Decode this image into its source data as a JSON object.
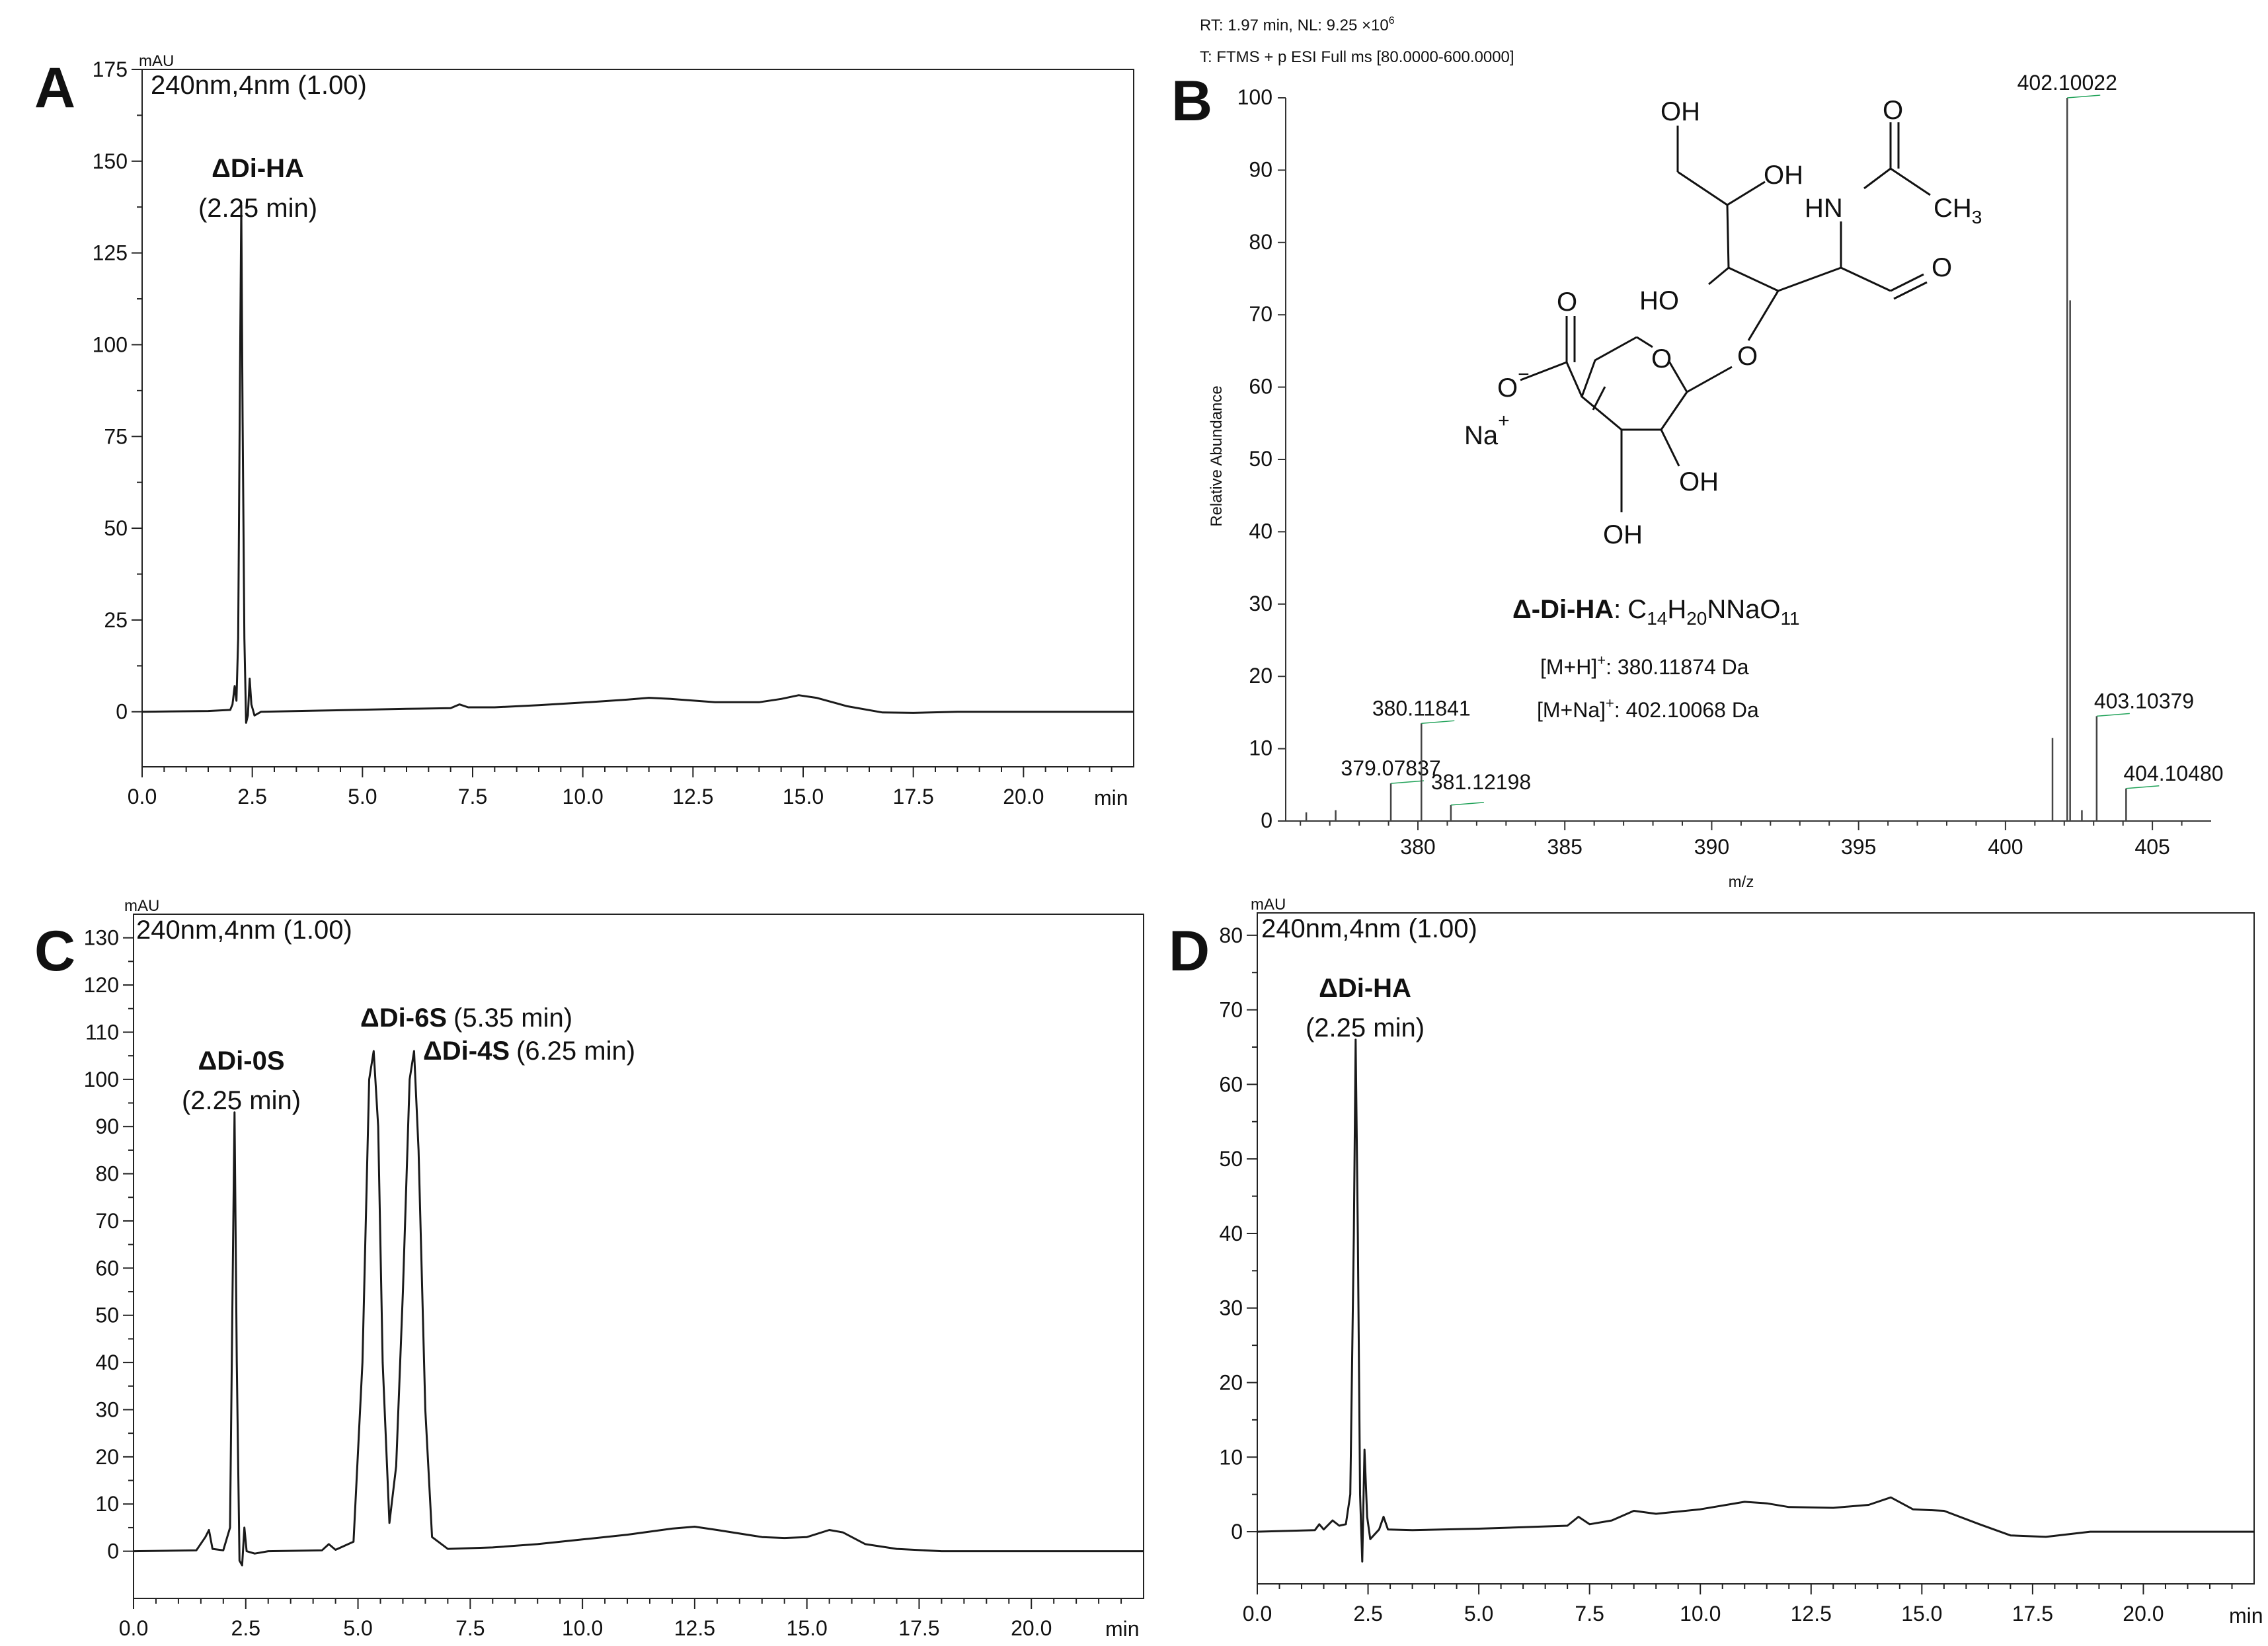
{
  "colors": {
    "trace": "#1a1a1a",
    "axis": "#222222",
    "ms_bar": "#444444",
    "ms_centroid": "#22a35a"
  },
  "chart_data": [
    {
      "id": "A",
      "type": "line",
      "panel_letter": "A",
      "ylabel": "mAU",
      "xlabel": "min",
      "header": "240nm,4nm (1.00)",
      "xlim": [
        0,
        22.5
      ],
      "ylim": [
        -15,
        175
      ],
      "xticks": [
        0,
        2.5,
        5,
        7.5,
        10,
        12.5,
        15,
        17.5,
        20
      ],
      "xtick_labels": [
        "0.0",
        "2.5",
        "5.0",
        "7.5",
        "10.0",
        "12.5",
        "15.0",
        "17.5",
        "20.0"
      ],
      "yticks": [
        0,
        25,
        50,
        75,
        100,
        125,
        150,
        175
      ],
      "ytick_labels": [
        "0",
        "25",
        "50",
        "75",
        "100",
        "125",
        "150",
        "175"
      ],
      "annotations": [
        {
          "name": "ΔDi-HA",
          "time": "(2.25 min)",
          "peak_x": 2.25,
          "peak_y": 138
        }
      ],
      "points": [
        [
          0,
          0
        ],
        [
          1.5,
          0.2
        ],
        [
          2.0,
          0.5
        ],
        [
          2.05,
          2
        ],
        [
          2.1,
          7
        ],
        [
          2.14,
          3
        ],
        [
          2.18,
          20
        ],
        [
          2.22,
          90
        ],
        [
          2.25,
          138
        ],
        [
          2.28,
          80
        ],
        [
          2.32,
          20
        ],
        [
          2.36,
          -3
        ],
        [
          2.4,
          -1
        ],
        [
          2.44,
          9
        ],
        [
          2.48,
          2
        ],
        [
          2.55,
          -1
        ],
        [
          2.7,
          0
        ],
        [
          4.0,
          0.3
        ],
        [
          6.0,
          0.8
        ],
        [
          7.0,
          1.0
        ],
        [
          7.2,
          2.0
        ],
        [
          7.4,
          1.2
        ],
        [
          8.0,
          1.2
        ],
        [
          9.0,
          1.8
        ],
        [
          10.0,
          2.5
        ],
        [
          11.0,
          3.3
        ],
        [
          11.5,
          3.8
        ],
        [
          12.0,
          3.5
        ],
        [
          13.0,
          2.6
        ],
        [
          14.0,
          2.6
        ],
        [
          14.5,
          3.5
        ],
        [
          14.9,
          4.5
        ],
        [
          15.3,
          3.8
        ],
        [
          16.0,
          1.5
        ],
        [
          16.8,
          -0.2
        ],
        [
          17.5,
          -0.3
        ],
        [
          18.5,
          0
        ],
        [
          20.0,
          0
        ],
        [
          22.5,
          0
        ]
      ]
    },
    {
      "id": "B",
      "type": "bar",
      "panel_letter": "B",
      "header_rt": "RT: 1.97 min, NL: 9.25 ×10",
      "header_rt_sup": "6",
      "header_scan": "T: FTMS + p ESI Full ms [80.0000-600.0000]",
      "xlabel": "m/z",
      "ylabel": "Relative Abundance",
      "xlim": [
        375.5,
        407
      ],
      "ylim": [
        0,
        100
      ],
      "xticks": [
        380,
        385,
        390,
        395,
        400,
        405
      ],
      "xtick_labels": [
        "380",
        "385",
        "390",
        "395",
        "400",
        "405"
      ],
      "yticks": [
        0,
        10,
        20,
        30,
        40,
        50,
        60,
        70,
        80,
        90,
        100
      ],
      "ytick_labels": [
        "0",
        "10",
        "20",
        "30",
        "40",
        "50",
        "60",
        "70",
        "80",
        "90",
        "100"
      ],
      "peaks": [
        {
          "mz": 376.2,
          "value": 1.2,
          "label": ""
        },
        {
          "mz": 377.2,
          "value": 1.5,
          "label": ""
        },
        {
          "mz": 379.07837,
          "value": 5.2,
          "label": "379.07837"
        },
        {
          "mz": 380.11841,
          "value": 13.5,
          "label": "380.11841"
        },
        {
          "mz": 381.12198,
          "value": 2.2,
          "label": "381.12198"
        },
        {
          "mz": 401.6,
          "value": 11.5,
          "label": ""
        },
        {
          "mz": 402.10022,
          "value": 100,
          "label": "402.10022"
        },
        {
          "mz": 402.2,
          "value": 72,
          "label": ""
        },
        {
          "mz": 402.6,
          "value": 1.5,
          "label": ""
        },
        {
          "mz": 403.10379,
          "value": 14.5,
          "label": "403.10379"
        },
        {
          "mz": 404.1048,
          "value": 4.5,
          "label": "404.10480"
        }
      ],
      "structure": {
        "labels": {
          "OH": "OH",
          "HO": "HO",
          "HN": "HN",
          "CH": "CH",
          "CH_sub": "3",
          "O": "O",
          "O_minus": "−",
          "Na": "Na",
          "Na_plus": "+"
        },
        "formula_name": "Δ-Di-HA",
        "formula_colon": ":",
        "formula_parts": [
          "C",
          "14",
          "H",
          "20",
          "NNaO",
          "11"
        ],
        "ion1_label": "[M+H]",
        "ion1_charge": "+",
        "ion1_value": ":  380.11874 Da",
        "ion2_label": "[M+Na]",
        "ion2_charge": "+",
        "ion2_value": ":  402.10068 Da"
      }
    },
    {
      "id": "C",
      "type": "line",
      "panel_letter": "C",
      "ylabel": "mAU",
      "xlabel": "min",
      "header": "240nm,4nm (1.00)",
      "xlim": [
        0,
        22.5
      ],
      "ylim": [
        -10,
        135
      ],
      "xticks": [
        0,
        2.5,
        5,
        7.5,
        10,
        12.5,
        15,
        17.5,
        20
      ],
      "xtick_labels": [
        "0.0",
        "2.5",
        "5.0",
        "7.5",
        "10.0",
        "12.5",
        "15.0",
        "17.5",
        "20.0"
      ],
      "yticks": [
        0,
        10,
        20,
        30,
        40,
        50,
        60,
        70,
        80,
        90,
        100,
        110,
        120,
        130
      ],
      "ytick_labels": [
        "0",
        "10",
        "20",
        "30",
        "40",
        "50",
        "60",
        "70",
        "80",
        "90",
        "100",
        "110",
        "120",
        "130"
      ],
      "annotations": [
        {
          "name": "ΔDi-0S",
          "time": "(2.25 min)",
          "peak_x": 2.25,
          "peak_y": 93
        },
        {
          "name": "ΔDi-6S",
          "time": "(5.35 min)",
          "peak_x": 5.35,
          "peak_y": 106
        },
        {
          "name": "ΔDi-4S",
          "time": "(6.25 min)",
          "peak_x": 6.25,
          "peak_y": 106
        }
      ],
      "points": [
        [
          0,
          0
        ],
        [
          1.4,
          0.2
        ],
        [
          1.6,
          3
        ],
        [
          1.68,
          4.5
        ],
        [
          1.76,
          0.5
        ],
        [
          2.0,
          0.2
        ],
        [
          2.15,
          5
        ],
        [
          2.2,
          50
        ],
        [
          2.25,
          93
        ],
        [
          2.3,
          40
        ],
        [
          2.36,
          -2
        ],
        [
          2.42,
          -3
        ],
        [
          2.47,
          5
        ],
        [
          2.52,
          0
        ],
        [
          2.7,
          -0.5
        ],
        [
          3.0,
          0
        ],
        [
          4.2,
          0.2
        ],
        [
          4.35,
          1.5
        ],
        [
          4.5,
          0.3
        ],
        [
          4.9,
          2
        ],
        [
          5.1,
          40
        ],
        [
          5.25,
          100
        ],
        [
          5.35,
          106
        ],
        [
          5.45,
          90
        ],
        [
          5.55,
          40
        ],
        [
          5.7,
          6
        ],
        [
          5.85,
          18
        ],
        [
          6.0,
          55
        ],
        [
          6.15,
          100
        ],
        [
          6.25,
          106
        ],
        [
          6.35,
          85
        ],
        [
          6.5,
          30
        ],
        [
          6.65,
          3
        ],
        [
          7.0,
          0.5
        ],
        [
          8.0,
          0.8
        ],
        [
          9.0,
          1.5
        ],
        [
          10.0,
          2.5
        ],
        [
          11.0,
          3.5
        ],
        [
          12.0,
          4.8
        ],
        [
          12.5,
          5.2
        ],
        [
          13.0,
          4.5
        ],
        [
          14.0,
          3.0
        ],
        [
          14.5,
          2.8
        ],
        [
          15.0,
          3.0
        ],
        [
          15.5,
          4.5
        ],
        [
          15.8,
          4.0
        ],
        [
          16.3,
          1.5
        ],
        [
          17.0,
          0.5
        ],
        [
          18.0,
          0
        ],
        [
          20.0,
          0
        ],
        [
          22.5,
          0
        ]
      ]
    },
    {
      "id": "D",
      "type": "line",
      "panel_letter": "D",
      "ylabel": "mAU",
      "xlabel": "min",
      "header": "240nm,4nm (1.00)",
      "xlim": [
        0,
        22.5
      ],
      "ylim": [
        -7,
        83
      ],
      "xticks": [
        0,
        2.5,
        5,
        7.5,
        10,
        12.5,
        15,
        17.5,
        20
      ],
      "xtick_labels": [
        "0.0",
        "2.5",
        "5.0",
        "7.5",
        "10.0",
        "12.5",
        "15.0",
        "17.5",
        "20.0"
      ],
      "yticks": [
        0,
        10,
        20,
        30,
        40,
        50,
        60,
        70,
        80
      ],
      "ytick_labels": [
        "0",
        "10",
        "20",
        "30",
        "40",
        "50",
        "60",
        "70",
        "80"
      ],
      "annotations": [
        {
          "name": "ΔDi-HA",
          "time": "(2.25 min)",
          "peak_x": 2.25,
          "peak_y": 66
        }
      ],
      "points": [
        [
          0,
          0
        ],
        [
          1.3,
          0.2
        ],
        [
          1.4,
          1.0
        ],
        [
          1.5,
          0.3
        ],
        [
          1.7,
          1.5
        ],
        [
          1.85,
          0.8
        ],
        [
          2.0,
          1.0
        ],
        [
          2.1,
          5
        ],
        [
          2.18,
          40
        ],
        [
          2.22,
          66
        ],
        [
          2.27,
          40
        ],
        [
          2.32,
          5
        ],
        [
          2.37,
          -4
        ],
        [
          2.42,
          11
        ],
        [
          2.48,
          2
        ],
        [
          2.55,
          -1
        ],
        [
          2.75,
          0.3
        ],
        [
          2.85,
          2.0
        ],
        [
          2.95,
          0.3
        ],
        [
          3.5,
          0.2
        ],
        [
          5.0,
          0.4
        ],
        [
          7.0,
          0.8
        ],
        [
          7.25,
          2.0
        ],
        [
          7.5,
          1.0
        ],
        [
          8.0,
          1.5
        ],
        [
          8.5,
          2.8
        ],
        [
          9.0,
          2.4
        ],
        [
          10.0,
          3.0
        ],
        [
          11.0,
          4.0
        ],
        [
          11.5,
          3.8
        ],
        [
          12.0,
          3.3
        ],
        [
          13.0,
          3.2
        ],
        [
          13.8,
          3.6
        ],
        [
          14.3,
          4.6
        ],
        [
          14.8,
          3.0
        ],
        [
          15.5,
          2.8
        ],
        [
          16.3,
          1.0
        ],
        [
          17.0,
          -0.5
        ],
        [
          17.8,
          -0.7
        ],
        [
          18.8,
          0
        ],
        [
          20.0,
          0
        ],
        [
          22.5,
          0
        ]
      ]
    }
  ]
}
